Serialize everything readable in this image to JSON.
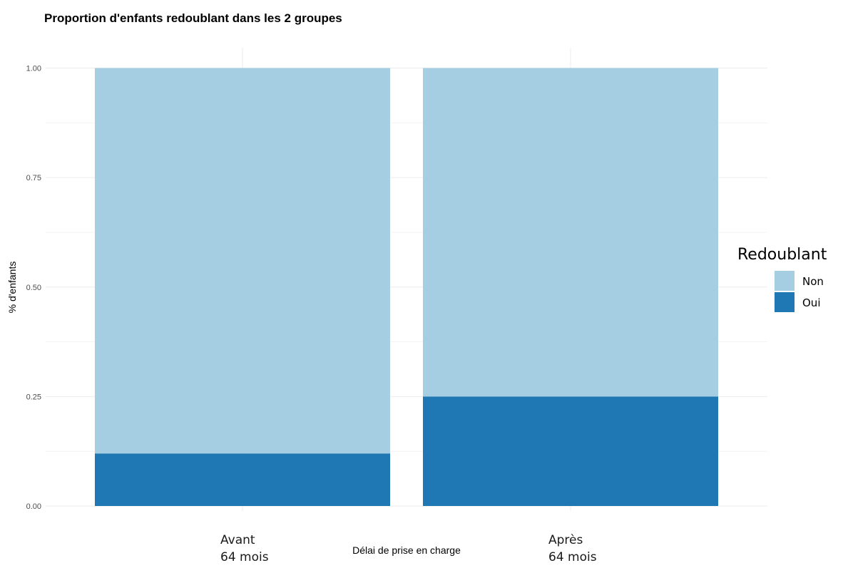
{
  "chart_data": {
    "type": "bar",
    "stacked": true,
    "title": "Proportion d'enfants redoublant dans les 2 groupes",
    "xlabel": "Délai de prise en charge",
    "ylabel": "% d'enfants",
    "categories": [
      [
        "Avant",
        "64 mois"
      ],
      [
        "Après",
        "64 mois"
      ]
    ],
    "series": [
      {
        "name": "Oui",
        "color": "#1f78b4",
        "values": [
          0.12,
          0.25
        ]
      },
      {
        "name": "Non",
        "color": "#a6cee3",
        "values": [
          0.88,
          0.75
        ]
      }
    ],
    "ylim": [
      0,
      1
    ],
    "yticks": [
      "0.00",
      "0.25",
      "0.50",
      "0.75",
      "1.00"
    ],
    "grid": true,
    "legend": {
      "title": "Redoublant",
      "position": "right",
      "order": [
        "Non",
        "Oui"
      ]
    }
  }
}
